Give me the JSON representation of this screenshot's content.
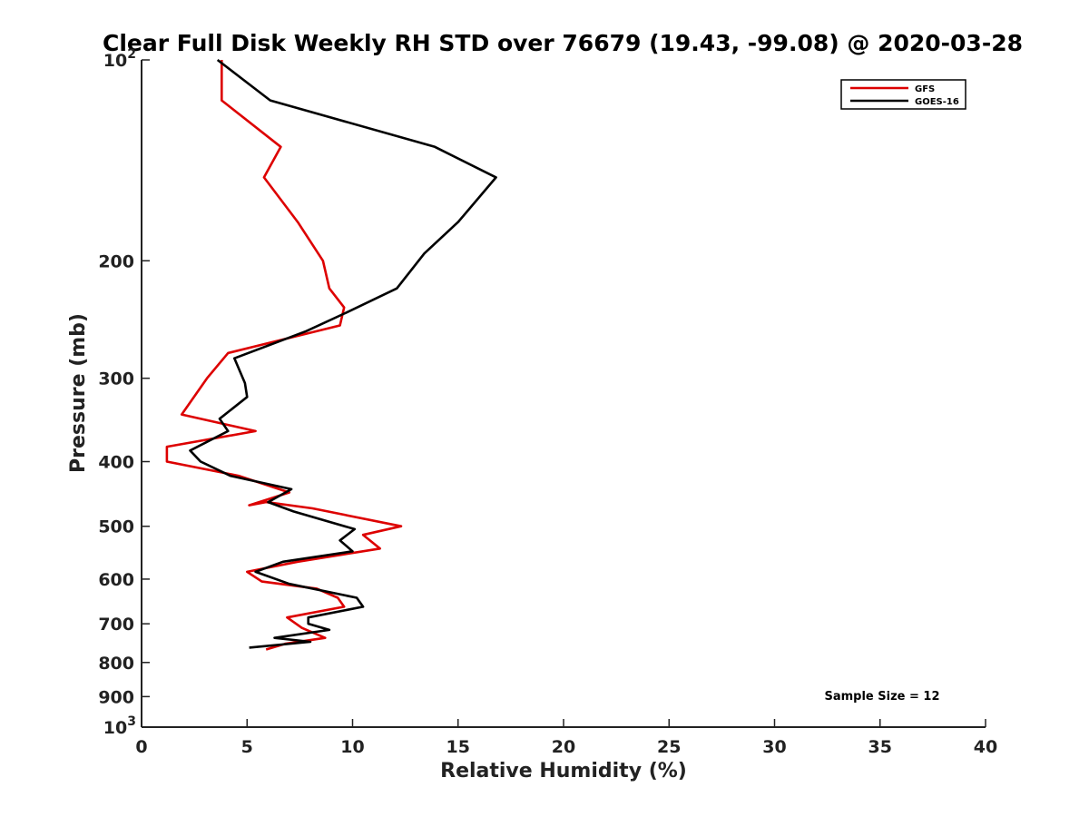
{
  "chart_data": {
    "type": "line",
    "title": "Clear Full Disk Weekly RH STD over 76679 (19.43, -99.08) @ 2020-03-28",
    "xlabel": "Relative Humidity (%)",
    "ylabel": "Pressure (mb)",
    "xlim": [
      0,
      40
    ],
    "ylim": [
      100,
      1000
    ],
    "y_scale": "log",
    "y_reversed": true,
    "x_ticks": [
      "0",
      "5",
      "10",
      "15",
      "20",
      "25",
      "30",
      "35",
      "40"
    ],
    "y_ticks": [
      {
        "value": 100,
        "label": "10",
        "sup": "2"
      },
      {
        "value": 200,
        "label": "200",
        "sup": ""
      },
      {
        "value": 300,
        "label": "300",
        "sup": ""
      },
      {
        "value": 400,
        "label": "400",
        "sup": ""
      },
      {
        "value": 500,
        "label": "500",
        "sup": ""
      },
      {
        "value": 600,
        "label": "600",
        "sup": ""
      },
      {
        "value": 700,
        "label": "700",
        "sup": ""
      },
      {
        "value": 800,
        "label": "800",
        "sup": ""
      },
      {
        "value": 900,
        "label": "900",
        "sup": ""
      },
      {
        "value": 1000,
        "label": "10",
        "sup": "3"
      }
    ],
    "legend_position": "top-right",
    "annotation": "Sample Size = 12",
    "series": [
      {
        "name": "GFS",
        "color": "#dd0000",
        "points": [
          [
            3.8,
            100
          ],
          [
            3.8,
            115
          ],
          [
            6.6,
            135
          ],
          [
            5.8,
            150
          ],
          [
            7.4,
            175
          ],
          [
            8.6,
            200
          ],
          [
            8.9,
            220
          ],
          [
            9.6,
            235
          ],
          [
            9.4,
            250
          ],
          [
            4.1,
            275
          ],
          [
            3.1,
            300
          ],
          [
            1.9,
            340
          ],
          [
            5.4,
            360
          ],
          [
            1.2,
            380
          ],
          [
            1.2,
            400
          ],
          [
            4.6,
            420
          ],
          [
            7.0,
            445
          ],
          [
            5.1,
            465
          ],
          [
            5.9,
            460
          ],
          [
            8.1,
            470
          ],
          [
            12.3,
            500
          ],
          [
            10.5,
            515
          ],
          [
            11.3,
            540
          ],
          [
            7.4,
            565
          ],
          [
            5.0,
            585
          ],
          [
            5.7,
            605
          ],
          [
            8.3,
            620
          ],
          [
            9.3,
            640
          ],
          [
            9.6,
            660
          ],
          [
            6.9,
            685
          ],
          [
            7.6,
            710
          ],
          [
            8.7,
            735
          ],
          [
            6.8,
            750
          ],
          [
            5.9,
            765
          ]
        ]
      },
      {
        "name": "GOES-16",
        "color": "#000000",
        "points": [
          [
            3.6,
            100
          ],
          [
            6.1,
            115
          ],
          [
            13.9,
            135
          ],
          [
            16.8,
            150
          ],
          [
            15.0,
            175
          ],
          [
            13.4,
            195
          ],
          [
            12.1,
            220
          ],
          [
            9.6,
            240
          ],
          [
            7.8,
            255
          ],
          [
            4.4,
            280
          ],
          [
            4.9,
            305
          ],
          [
            5.0,
            320
          ],
          [
            3.7,
            345
          ],
          [
            4.1,
            360
          ],
          [
            2.3,
            385
          ],
          [
            2.8,
            400
          ],
          [
            4.2,
            420
          ],
          [
            7.1,
            440
          ],
          [
            6.0,
            460
          ],
          [
            7.2,
            475
          ],
          [
            10.1,
            505
          ],
          [
            9.4,
            525
          ],
          [
            10.0,
            545
          ],
          [
            6.7,
            565
          ],
          [
            5.4,
            585
          ],
          [
            7.0,
            610
          ],
          [
            10.2,
            640
          ],
          [
            10.5,
            660
          ],
          [
            7.9,
            685
          ],
          [
            7.9,
            700
          ],
          [
            8.9,
            715
          ],
          [
            6.3,
            735
          ],
          [
            8.0,
            745
          ],
          [
            5.1,
            760
          ]
        ]
      }
    ]
  }
}
